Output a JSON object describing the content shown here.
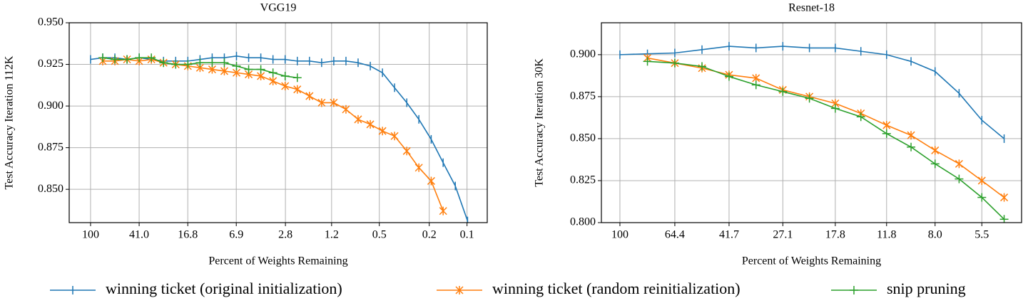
{
  "chart_data": [
    {
      "type": "line",
      "title": "VGG19",
      "xlabel": "Percent of Weights Remaining",
      "ylabel": "Test Accuracy Iteration 112K",
      "xscale": "log",
      "grid": true,
      "legend": "bottom",
      "xlim": [
        148,
        0.069
      ],
      "ylim": [
        0.83,
        0.95
      ],
      "xticks": [
        100,
        {
          "value": 41,
          "label": "41.0"
        },
        16.8,
        6.9,
        2.8,
        1.2,
        0.5,
        0.2,
        0.1
      ],
      "yticks": [
        {
          "value": 0.95,
          "label": "0.950"
        },
        0.925,
        {
          "value": 0.9,
          "label": "0.900"
        },
        0.875,
        {
          "value": 0.85,
          "label": "0.850"
        }
      ],
      "x": [
        100,
        80,
        64,
        51.2,
        40.96,
        32.768,
        26.214,
        20.972,
        16.777,
        13.422,
        10.737,
        8.59,
        6.872,
        5.498,
        4.398,
        3.518,
        2.815,
        2.252,
        1.801,
        1.441,
        1.153,
        0.922,
        0.738,
        0.59,
        0.472,
        0.378,
        0.302,
        0.242,
        0.193,
        0.155,
        0.124,
        0.099
      ],
      "series": [
        {
          "name": "winning ticket (original initialization)",
          "color": "#1f77b4",
          "marker": "|",
          "values": [
            0.928,
            0.929,
            0.929,
            0.928,
            0.929,
            0.928,
            0.927,
            0.927,
            0.927,
            0.928,
            0.929,
            0.929,
            0.93,
            0.929,
            0.929,
            0.928,
            0.928,
            0.927,
            0.927,
            0.926,
            0.927,
            0.927,
            0.926,
            0.924,
            0.92,
            0.911,
            0.902,
            0.892,
            0.88,
            0.866,
            0.852,
            0.831
          ]
        },
        {
          "name": "winning ticket (random reinitialization)",
          "color": "#ff7f0e",
          "marker": "*",
          "values": [
            null,
            0.927,
            0.927,
            0.928,
            0.927,
            0.928,
            0.926,
            0.925,
            0.924,
            0.923,
            0.922,
            0.921,
            0.92,
            0.919,
            0.918,
            0.915,
            0.912,
            0.91,
            0.906,
            0.902,
            0.902,
            0.898,
            0.892,
            0.889,
            0.885,
            0.882,
            0.873,
            0.863,
            0.855,
            0.837,
            null,
            null
          ]
        },
        {
          "name": "snip pruning",
          "color": "#2ca02c",
          "marker": "+",
          "values": [
            null,
            0.929,
            0.928,
            0.928,
            0.929,
            0.929,
            0.926,
            0.925,
            0.925,
            0.926,
            0.926,
            0.926,
            0.924,
            0.922,
            0.922,
            0.92,
            0.918,
            0.917,
            null,
            null,
            null,
            null,
            null,
            null,
            null,
            null,
            null,
            null,
            null,
            null,
            null,
            null
          ]
        }
      ]
    },
    {
      "type": "line",
      "title": "Resnet-18",
      "xlabel": "Percent of Weights Remaining",
      "ylabel": "Test Accuracy Iteration 30K",
      "xscale": "log",
      "grid": true,
      "xlim": [
        116,
        4.0
      ],
      "ylim": [
        0.8,
        0.919
      ],
      "xticks": [
        100,
        64.4,
        41.7,
        27.1,
        17.8,
        11.8,
        {
          "value": 8,
          "label": "8.0"
        },
        5.5
      ],
      "yticks": [
        {
          "value": 0.9,
          "label": "0.900"
        },
        0.875,
        {
          "value": 0.85,
          "label": "0.850"
        },
        0.825,
        {
          "value": 0.8,
          "label": "0.800"
        }
      ],
      "x": [
        100,
        80.2,
        64.4,
        51.8,
        41.7,
        33.6,
        27.1,
        21.9,
        17.8,
        14.5,
        11.8,
        9.7,
        8.0,
        6.6,
        5.5,
        4.6
      ],
      "series": [
        {
          "color": "#1f77b4",
          "marker": "|",
          "values": [
            0.9,
            0.9005,
            0.901,
            0.903,
            0.905,
            0.904,
            0.905,
            0.904,
            0.904,
            0.902,
            0.9,
            0.896,
            0.89,
            0.877,
            0.861,
            0.85
          ]
        },
        {
          "color": "#ff7f0e",
          "marker": "*",
          "values": [
            null,
            0.898,
            0.895,
            0.892,
            0.888,
            0.886,
            0.879,
            0.875,
            0.871,
            0.865,
            0.858,
            0.852,
            0.843,
            0.835,
            0.825,
            0.815
          ]
        },
        {
          "color": "#2ca02c",
          "marker": "+",
          "values": [
            null,
            0.896,
            0.895,
            0.893,
            0.887,
            0.882,
            0.878,
            0.874,
            0.868,
            0.863,
            0.853,
            0.845,
            0.835,
            0.826,
            0.815,
            0.802
          ]
        }
      ]
    }
  ]
}
